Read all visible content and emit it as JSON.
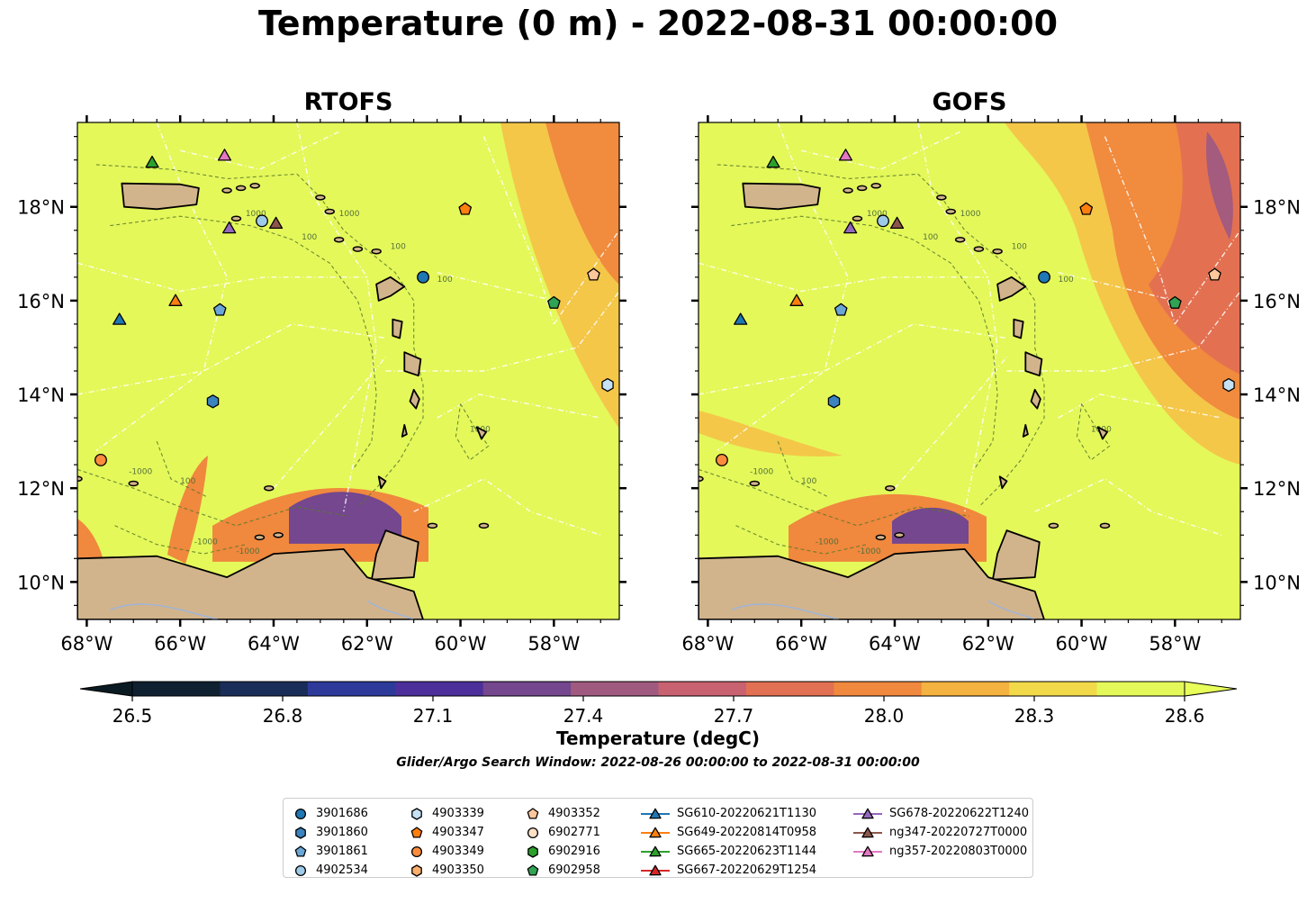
{
  "suptitle": "Temperature (0 m) - 2022-08-31 00:00:00",
  "panels": [
    {
      "title": "RTOFS"
    },
    {
      "title": "GOFS"
    }
  ],
  "lon_ticks": [
    "68°W",
    "66°W",
    "64°W",
    "62°W",
    "60°W",
    "58°W"
  ],
  "lat_ticks": [
    "18°N",
    "16°N",
    "14°N",
    "12°N",
    "10°N"
  ],
  "map_extent": {
    "lon": [
      -68.2,
      -56.6
    ],
    "lat": [
      9.2,
      19.8
    ]
  },
  "colorbar": {
    "label": "Temperature (degC)",
    "ticks": [
      "26.5",
      "26.8",
      "27.1",
      "27.4",
      "27.7",
      "28.0",
      "28.3",
      "28.6"
    ],
    "range": [
      26.5,
      28.6
    ],
    "extend": "both",
    "colors": [
      "#0f2030",
      "#1a2c58",
      "#2d3a9a",
      "#4c2f9a",
      "#74478e",
      "#a05a80",
      "#c96270",
      "#e27052",
      "#f0883e",
      "#f4b240",
      "#f2d94a",
      "#e4f85a"
    ]
  },
  "search_window": "Glider/Argo Search Window: 2022-08-26 00:00:00 to 2022-08-31 00:00:00",
  "contour_labels": [
    "1000",
    "100",
    "1000",
    "100",
    "1000",
    "100",
    "-1000",
    "-1000",
    "100",
    "-1000"
  ],
  "legend": [
    {
      "label": "3901686",
      "marker": "circle",
      "color": "#1f77b4"
    },
    {
      "label": "3901860",
      "marker": "hexagon",
      "color": "#3a84c0"
    },
    {
      "label": "3901861",
      "marker": "pentagon",
      "color": "#6aa6d6"
    },
    {
      "label": "4902534",
      "marker": "circle",
      "color": "#9ecae9"
    },
    {
      "label": "4903339",
      "marker": "hexagon",
      "color": "#c6e2f5"
    },
    {
      "label": "4903347",
      "marker": "pentagon",
      "color": "#ff7f0e"
    },
    {
      "label": "4903349",
      "marker": "circle",
      "color": "#fd8d3c"
    },
    {
      "label": "4903350",
      "marker": "hexagon",
      "color": "#fdae6b"
    },
    {
      "label": "4903352",
      "marker": "pentagon",
      "color": "#fdc79b"
    },
    {
      "label": "6902771",
      "marker": "circle",
      "color": "#fde0c5"
    },
    {
      "label": "6902916",
      "marker": "hexagon",
      "color": "#2ca02c"
    },
    {
      "label": "6902958",
      "marker": "pentagon",
      "color": "#31a354"
    },
    {
      "label": "SG610-20220621T1130",
      "marker": "triangle",
      "color": "#1f77b4"
    },
    {
      "label": "SG649-20220814T0958",
      "marker": "triangle",
      "color": "#ff7f0e"
    },
    {
      "label": "SG665-20220623T1144",
      "marker": "triangle",
      "color": "#2ca02c"
    },
    {
      "label": "SG667-20220629T1254",
      "marker": "triangle",
      "color": "#d62728"
    },
    {
      "label": "SG678-20220622T1240",
      "marker": "triangle",
      "color": "#9467bd"
    },
    {
      "label": "ng347-20220727T0000",
      "marker": "triangle",
      "color": "#8c564b"
    },
    {
      "label": "ng357-20220803T0000",
      "marker": "triangle",
      "color": "#e377c2"
    }
  ],
  "observations": [
    {
      "id": "3901686",
      "lon": -60.8,
      "lat": 16.5,
      "marker": "circle",
      "color": "#1f77b4"
    },
    {
      "id": "3901860",
      "lon": -65.3,
      "lat": 13.85,
      "marker": "hexagon",
      "color": "#3a84c0"
    },
    {
      "id": "3901861",
      "lon": -65.15,
      "lat": 15.8,
      "marker": "pentagon",
      "color": "#6aa6d6"
    },
    {
      "id": "4902534",
      "lon": -64.25,
      "lat": 17.7,
      "marker": "circle",
      "color": "#9ecae9"
    },
    {
      "id": "4903339",
      "lon": -56.85,
      "lat": 14.2,
      "marker": "hexagon",
      "color": "#c6e2f5"
    },
    {
      "id": "4903347",
      "lon": -59.9,
      "lat": 17.95,
      "marker": "pentagon",
      "color": "#ff7f0e"
    },
    {
      "id": "4903349",
      "lon": -67.7,
      "lat": 12.6,
      "marker": "circle",
      "color": "#fd8d3c"
    },
    {
      "id": "4903352",
      "lon": -57.15,
      "lat": 16.55,
      "marker": "pentagon",
      "color": "#fdc79b"
    },
    {
      "id": "6902958",
      "lon": -58.0,
      "lat": 15.95,
      "marker": "pentagon",
      "color": "#31a354"
    },
    {
      "id": "SG610",
      "lon": -67.3,
      "lat": 15.6,
      "marker": "triangle",
      "color": "#1f77b4"
    },
    {
      "id": "SG649",
      "lon": -66.1,
      "lat": 16.0,
      "marker": "triangle",
      "color": "#ff7f0e"
    },
    {
      "id": "SG665",
      "lon": -66.6,
      "lat": 18.95,
      "marker": "triangle",
      "color": "#2ca02c"
    },
    {
      "id": "SG678",
      "lon": -64.95,
      "lat": 17.55,
      "marker": "triangle",
      "color": "#9467bd"
    },
    {
      "id": "ng347",
      "lon": -63.95,
      "lat": 17.65,
      "marker": "triangle",
      "color": "#8c564b"
    },
    {
      "id": "ng357",
      "lon": -65.05,
      "lat": 19.1,
      "marker": "triangle",
      "color": "#e377c2"
    }
  ]
}
